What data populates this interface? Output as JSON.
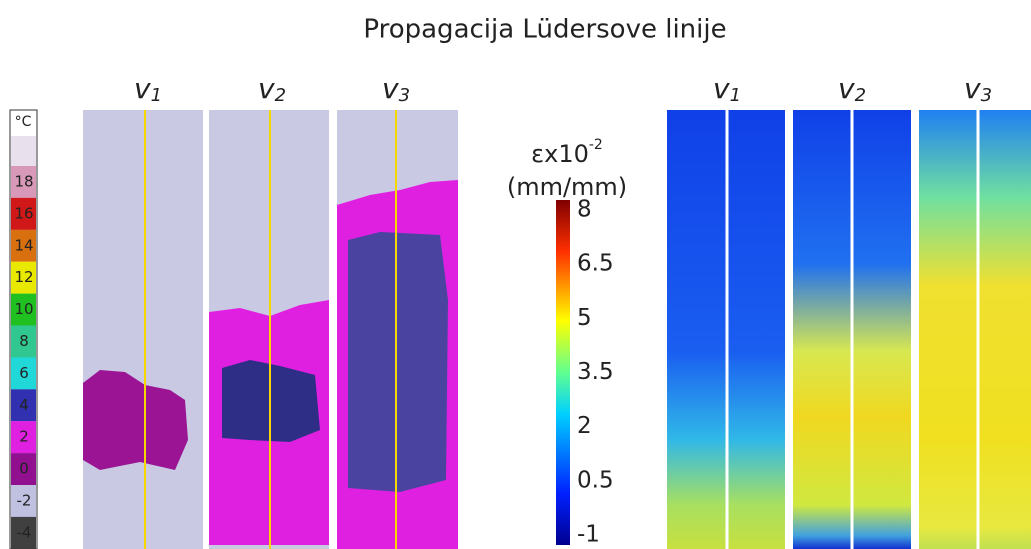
{
  "title": "Propagacija Lüdersove linije",
  "thermal": {
    "unit": "°C",
    "scale_labels": [
      "18",
      "16",
      "14",
      "12",
      "10",
      "8",
      "6",
      "4",
      "2",
      "0",
      "-2",
      "-4"
    ],
    "specimens": [
      {
        "base": "v",
        "sub": "1"
      },
      {
        "base": "v",
        "sub": "2"
      },
      {
        "base": "v",
        "sub": "3"
      }
    ]
  },
  "strain": {
    "label": {
      "base": "εx10",
      "sup": "-2"
    },
    "unit": "(mm/mm)",
    "scale_labels": [
      "8",
      "6.5",
      "5",
      "3.5",
      "2",
      "0.5",
      "-1"
    ],
    "specimens": [
      {
        "base": "v",
        "sub": "1"
      },
      {
        "base": "v",
        "sub": "2"
      },
      {
        "base": "v",
        "sub": "3"
      }
    ]
  }
}
